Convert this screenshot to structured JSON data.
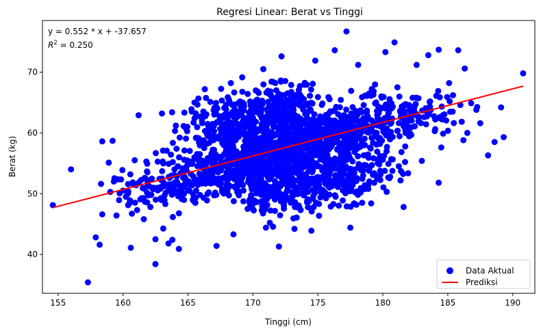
{
  "chart_data": {
    "type": "scatter",
    "title": "Regresi Linear: Berat vs Tinggi",
    "xlabel": "Tinggi (cm)",
    "ylabel": "Berat (kg)",
    "xlim": [
      153.8,
      191.7
    ],
    "ylim": [
      33.6,
      78.5
    ],
    "x_ticks": [
      155,
      160,
      165,
      170,
      175,
      180,
      185,
      190
    ],
    "y_ticks": [
      40,
      50,
      60,
      70
    ],
    "grid": false,
    "legend_position": "lower-right",
    "annotation": {
      "equation": "y =  0.552 * x + -37.657",
      "r2_prefix": "R",
      "r2_sup": "2",
      "r2_value": " = 0.250"
    },
    "series": [
      {
        "name": "Data Aktual",
        "kind": "scatter",
        "color": "#0000ff",
        "points": [
          [
            154.6,
            48.1
          ],
          [
            156.0,
            54.0
          ],
          [
            157.3,
            35.4
          ],
          [
            157.9,
            42.8
          ],
          [
            158.2,
            41.6
          ],
          [
            158.4,
            58.6
          ],
          [
            158.4,
            46.6
          ],
          [
            158.9,
            55.1
          ],
          [
            159.2,
            58.7
          ],
          [
            159.3,
            52.0
          ],
          [
            159.5,
            46.4
          ],
          [
            160.0,
            50.5
          ],
          [
            160.6,
            41.1
          ],
          [
            160.9,
            55.5
          ],
          [
            161.2,
            62.9
          ],
          [
            161.6,
            45.8
          ],
          [
            162.5,
            38.4
          ],
          [
            162.5,
            42.5
          ],
          [
            163.0,
            63.2
          ],
          [
            163.5,
            41.8
          ],
          [
            163.8,
            42.4
          ],
          [
            164.3,
            40.9
          ],
          [
            165.5,
            65.0
          ],
          [
            166.3,
            67.2
          ],
          [
            167.2,
            41.4
          ],
          [
            168.3,
            68.2
          ],
          [
            168.5,
            43.3
          ],
          [
            170.8,
            70.5
          ],
          [
            171.3,
            45.2
          ],
          [
            172.0,
            41.3
          ],
          [
            172.2,
            72.6
          ],
          [
            173.2,
            44.2
          ],
          [
            174.5,
            43.9
          ],
          [
            174.8,
            71.9
          ],
          [
            176.3,
            73.6
          ],
          [
            177.2,
            76.7
          ],
          [
            177.5,
            44.4
          ],
          [
            178.1,
            71.2
          ],
          [
            179.1,
            48.4
          ],
          [
            180.2,
            73.3
          ],
          [
            180.3,
            50.3
          ],
          [
            180.9,
            74.9
          ],
          [
            181.4,
            53.7
          ],
          [
            181.6,
            47.8
          ],
          [
            182.6,
            71.2
          ],
          [
            183.0,
            55.4
          ],
          [
            183.5,
            72.8
          ],
          [
            184.0,
            60.3
          ],
          [
            184.3,
            51.8
          ],
          [
            184.3,
            73.7
          ],
          [
            184.5,
            57.6
          ],
          [
            185.1,
            68.2
          ],
          [
            185.4,
            66.2
          ],
          [
            185.8,
            73.6
          ],
          [
            186.2,
            58.8
          ],
          [
            186.3,
            70.6
          ],
          [
            186.5,
            60.0
          ],
          [
            186.8,
            64.9
          ],
          [
            187.2,
            63.8
          ],
          [
            187.5,
            61.6
          ],
          [
            188.1,
            56.3
          ],
          [
            188.6,
            58.5
          ],
          [
            189.1,
            64.2
          ],
          [
            189.3,
            59.3
          ],
          [
            190.8,
            69.8
          ]
        ],
        "cloud": [
          [
            172.5,
            57.3,
            20
          ],
          [
            170.0,
            55.6,
            17
          ],
          [
            175.0,
            59.1,
            17
          ],
          [
            167.5,
            54.0,
            13
          ],
          [
            177.5,
            60.7,
            13
          ],
          [
            165.0,
            52.3,
            9
          ],
          [
            180.0,
            62.3,
            9
          ],
          [
            162.5,
            50.6,
            6
          ],
          [
            182.5,
            64.0,
            6
          ],
          [
            172.5,
            64.2,
            14
          ],
          [
            172.5,
            50.4,
            14
          ],
          [
            170.0,
            62.5,
            12
          ],
          [
            175.0,
            52.2,
            12
          ],
          [
            167.5,
            60.9,
            10
          ],
          [
            177.5,
            53.8,
            10
          ]
        ]
      },
      {
        "name": "Prediksi",
        "kind": "line",
        "color": "#ff0000",
        "x": [
          154.6,
          190.8
        ],
        "y": [
          47.7,
          67.7
        ]
      }
    ]
  }
}
